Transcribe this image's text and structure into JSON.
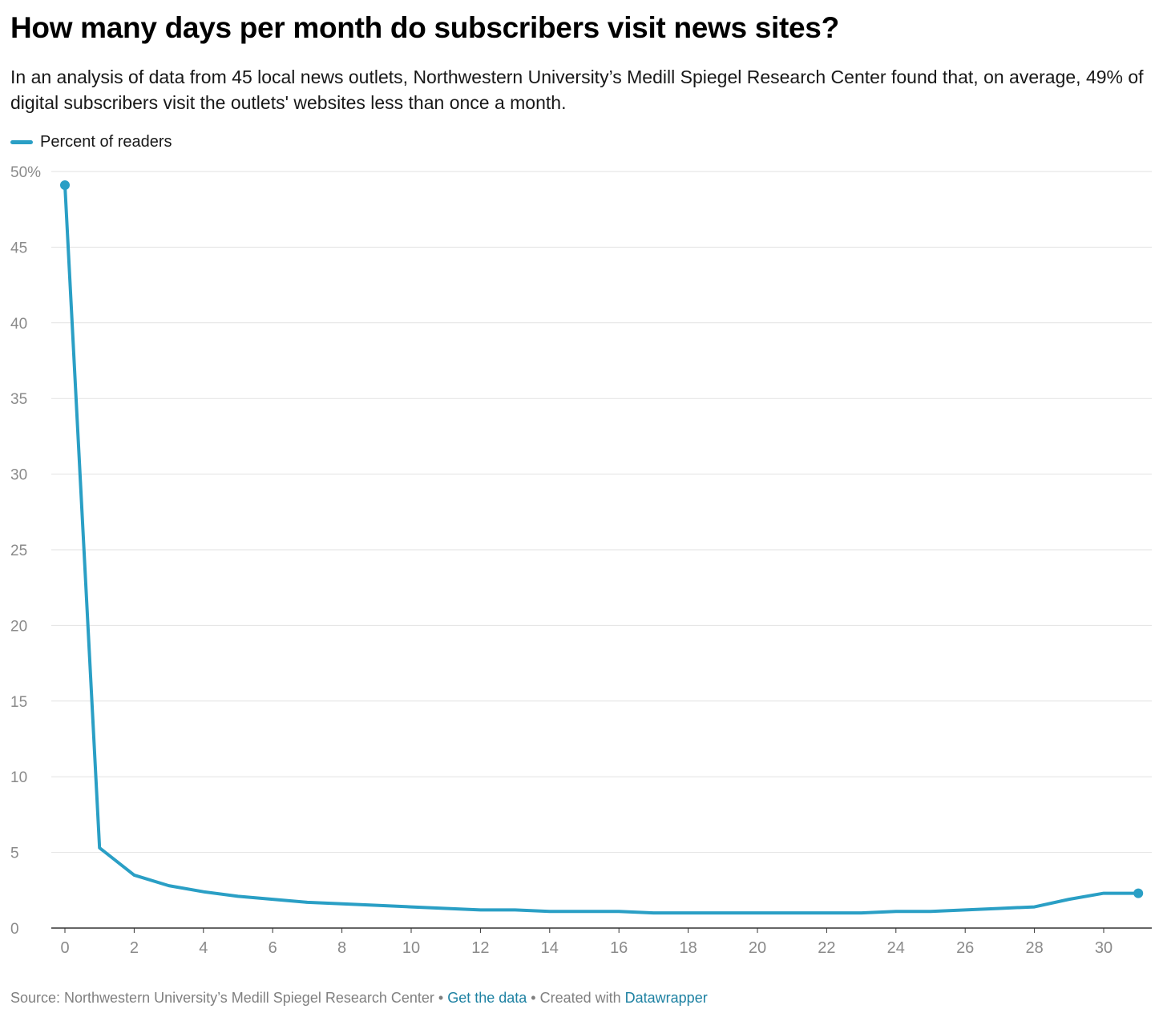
{
  "header": {
    "title": "How many days per month do subscribers visit news sites?",
    "subtitle": "In an analysis of data from 45 local news outlets, Northwestern University’s Medill Spiegel Research Center found that, on average, 49% of digital subscribers visit the outlets' websites less than once a month."
  },
  "legend": {
    "label": "Percent of readers"
  },
  "colors": {
    "series": "#2a9fc5",
    "grid": "#e2e2e2",
    "axis": "#333333",
    "tick_text": "#8a8a8a",
    "link": "#1d81a2"
  },
  "footer": {
    "source": "Source: Northwestern University’s Medill Spiegel Research Center",
    "sep1": " • ",
    "get_data": "Get the data",
    "sep2": " • Created with ",
    "datawrapper": "Datawrapper"
  },
  "chart_data": {
    "type": "line",
    "title": "How many days per month do subscribers visit news sites?",
    "xlabel": "",
    "ylabel": "",
    "xlim": [
      0,
      31
    ],
    "ylim": [
      0,
      50
    ],
    "x_ticks": [
      0,
      2,
      4,
      6,
      8,
      10,
      12,
      14,
      16,
      18,
      20,
      22,
      24,
      26,
      28,
      30
    ],
    "y_ticks": [
      0,
      5,
      10,
      15,
      20,
      25,
      30,
      35,
      40,
      45,
      50
    ],
    "y_tick_labels": [
      "0",
      "5",
      "10",
      "15",
      "20",
      "25",
      "30",
      "35",
      "40",
      "45",
      "50%"
    ],
    "grid": true,
    "legend_position": "top-left",
    "series": [
      {
        "name": "Percent of readers",
        "x": [
          0,
          1,
          2,
          3,
          4,
          5,
          6,
          7,
          8,
          9,
          10,
          11,
          12,
          13,
          14,
          15,
          16,
          17,
          18,
          19,
          20,
          21,
          22,
          23,
          24,
          25,
          26,
          27,
          28,
          29,
          30,
          31
        ],
        "values": [
          49.1,
          5.3,
          3.5,
          2.8,
          2.4,
          2.1,
          1.9,
          1.7,
          1.6,
          1.5,
          1.4,
          1.3,
          1.2,
          1.2,
          1.1,
          1.1,
          1.1,
          1.0,
          1.0,
          1.0,
          1.0,
          1.0,
          1.0,
          1.0,
          1.1,
          1.1,
          1.2,
          1.3,
          1.4,
          1.9,
          2.3,
          2.3
        ]
      }
    ]
  }
}
